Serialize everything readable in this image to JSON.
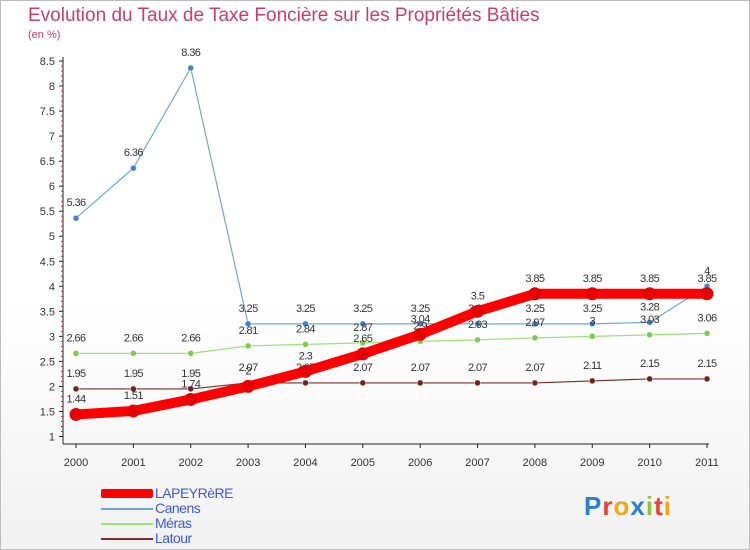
{
  "title": "Evolution du Taux de Taxe Foncière sur les Propriétés Bâties",
  "subtitle": "(en %)",
  "logo": {
    "text": "Proxiti",
    "letters": [
      "P",
      "r",
      "o",
      "x",
      "i",
      "t",
      "i"
    ],
    "colors": [
      "#2a7fd4",
      "#e8432c",
      "#f0a818",
      "#2a7fd4",
      "#8cc63f",
      "#e8432c",
      "#f0a818"
    ]
  },
  "legend": [
    {
      "label": "LAPEYRèRE"
    },
    {
      "label": "Canens"
    },
    {
      "label": "Méras"
    },
    {
      "label": "Latour"
    }
  ],
  "chart_data": {
    "type": "line",
    "title": "Evolution du Taux de Taxe Foncière sur les Propriétés Bâties",
    "ylabel": "(en %)",
    "x": [
      "2000",
      "2001",
      "2002",
      "2003",
      "2004",
      "2005",
      "2006",
      "2007",
      "2008",
      "2009",
      "2010",
      "2011"
    ],
    "ylim": [
      0.85,
      8.5
    ],
    "yticks": [
      1,
      1.5,
      2,
      2.5,
      3,
      3.5,
      4,
      4.5,
      5,
      5.5,
      6,
      6.5,
      7,
      7.5,
      8,
      8.5
    ],
    "ytick_labels": [
      "1",
      "1.5",
      "2",
      "2.5",
      "3",
      "3.5",
      "4",
      "4.5",
      "5",
      "5.5",
      "6",
      "6.5",
      "7",
      "7.5",
      "8",
      "8.5"
    ],
    "series": [
      {
        "name": "Canens",
        "color": "#6fa6d6",
        "marker_color": "#3f86c8",
        "values": [
          5.36,
          6.36,
          8.36,
          3.25,
          3.25,
          3.25,
          3.25,
          3.25,
          3.25,
          3.25,
          3.28,
          4.0
        ],
        "labels": [
          "5.36",
          "6.36",
          "8.36",
          "3.25",
          "3.25",
          "3.25",
          "3.25",
          "3.25",
          "3.25",
          "3.25",
          "3.28",
          "4"
        ]
      },
      {
        "name": "Méras",
        "color": "#9ee07a",
        "marker_color": "#7ccb4a",
        "values": [
          2.66,
          2.66,
          2.66,
          2.81,
          2.84,
          2.87,
          2.9,
          2.93,
          2.97,
          3.0,
          3.03,
          3.06
        ],
        "labels": [
          "2.66",
          "2.66",
          "2.66",
          "2.81",
          "2.84",
          "2.87",
          "2.9",
          "2.93",
          "2.97",
          "3",
          "3.03",
          "3.06"
        ]
      },
      {
        "name": "Latour",
        "color": "#7a2f2f",
        "marker_color": "#6b2424",
        "values": [
          1.95,
          1.95,
          1.95,
          2.07,
          2.07,
          2.07,
          2.07,
          2.07,
          2.07,
          2.11,
          2.15,
          2.15
        ],
        "labels": [
          "1.95",
          "1.95",
          "1.95",
          "2.07",
          "2.07",
          "2.07",
          "2.07",
          "2.07",
          "2.07",
          "2.11",
          "2.15",
          "2.15"
        ]
      },
      {
        "name": "LAPEYRèRE",
        "color": "#ff0000",
        "marker_color": "#e60000",
        "values": [
          1.44,
          1.51,
          1.74,
          2.0,
          2.3,
          2.65,
          3.04,
          3.5,
          3.85,
          3.85,
          3.85,
          3.85
        ],
        "labels": [
          "1.44",
          "1.51",
          "1.74",
          "2",
          "2.3",
          "2.65",
          "3.04",
          "3.5",
          "3.85",
          "3.85",
          "3.85",
          "3.85"
        ]
      }
    ]
  }
}
